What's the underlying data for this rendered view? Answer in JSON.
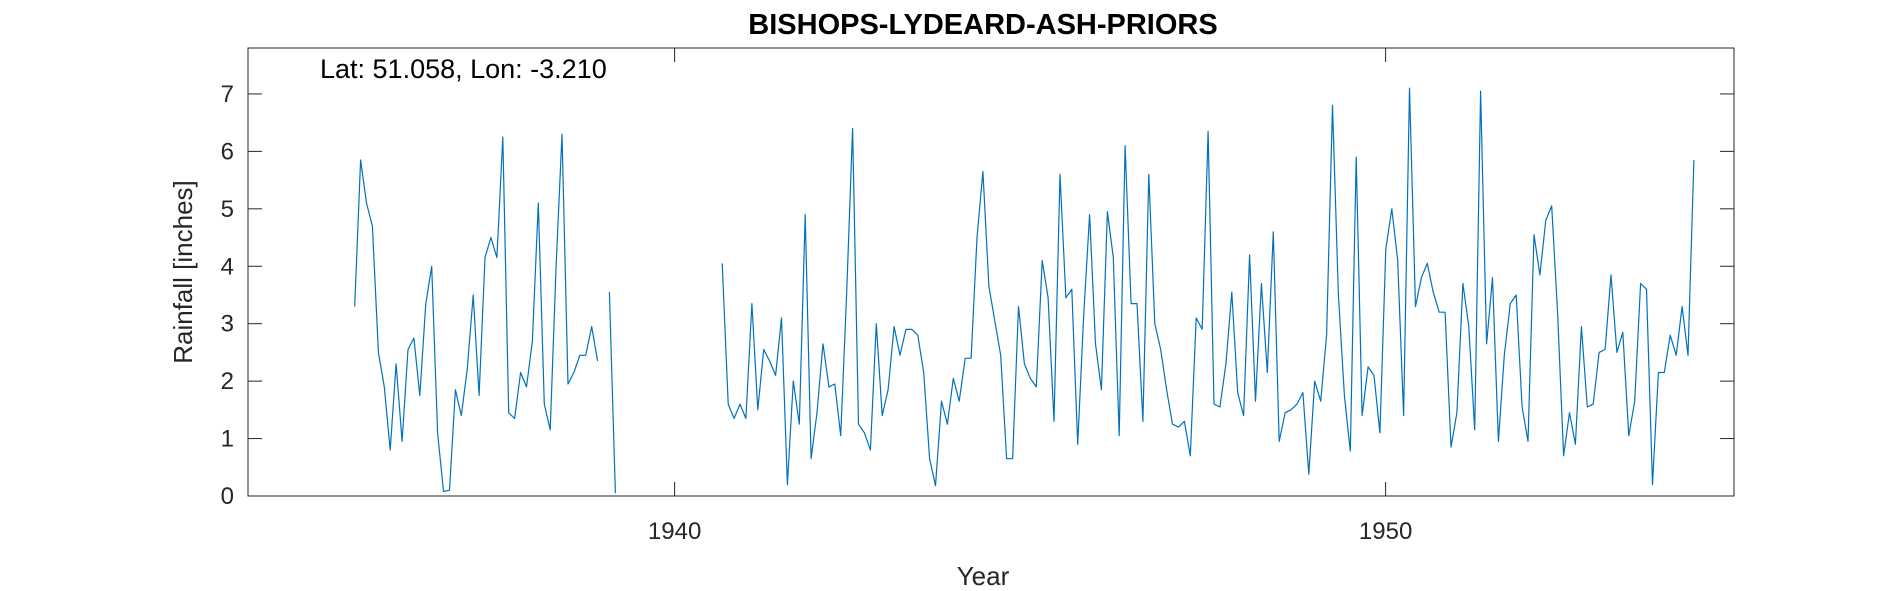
{
  "chart_data": {
    "type": "line",
    "title": "BISHOPS-LYDEARD-ASH-PRIORS",
    "xlabel": "Year",
    "ylabel": "Rainfall [inches]",
    "annotation": "Lat: 51.058, Lon: -3.210",
    "xlim": [
      1934.0,
      1954.9
    ],
    "ylim": [
      0,
      7.8
    ],
    "xticks": [
      1940,
      1950
    ],
    "xtick_labels": [
      "1940",
      "1950"
    ],
    "yticks": [
      0,
      1,
      2,
      3,
      4,
      5,
      6,
      7
    ],
    "ytick_labels": [
      "0",
      "1",
      "2",
      "3",
      "4",
      "5",
      "6",
      "7"
    ],
    "grid": false,
    "line_color": "#0072BD",
    "series": [
      {
        "start_year": 1935.5,
        "step_months": 1,
        "segments": [
          {
            "start_year": 1935.5,
            "values": [
              3.3,
              5.85,
              5.1,
              4.7,
              2.5,
              1.9,
              0.8,
              2.3,
              0.95,
              2.55,
              2.75,
              1.75,
              3.35,
              4.0,
              1.1,
              0.08,
              0.1,
              1.85,
              1.4,
              2.2,
              3.5,
              1.75,
              4.15,
              4.5,
              4.15,
              6.25,
              1.45,
              1.35,
              2.15,
              1.9,
              2.7,
              5.1,
              1.6,
              1.15,
              4.0,
              6.3,
              1.95,
              2.15,
              2.45,
              2.45,
              2.95,
              2.35,
              "gap",
              3.55,
              0.05
            ]
          },
          {
            "start_year": 1940.67,
            "values": [
              4.05,
              1.6,
              1.35,
              1.6,
              1.35,
              3.35,
              1.5,
              2.55,
              2.35,
              2.1,
              3.1,
              0.2,
              2.0,
              1.25,
              4.9,
              0.65,
              1.45,
              2.65,
              1.9,
              1.95,
              1.05,
              3.55,
              6.4,
              1.25,
              1.1,
              0.8,
              3.0,
              1.4,
              1.85,
              2.95,
              2.45,
              2.9,
              2.9,
              2.8,
              2.15,
              0.65,
              0.18,
              1.65,
              1.25,
              2.05,
              1.65,
              2.4,
              2.4,
              4.5,
              5.65,
              3.65,
              3.05,
              2.45,
              0.65,
              0.65,
              3.3,
              2.3,
              2.05,
              1.9,
              4.1,
              3.45,
              1.3,
              5.6,
              3.45,
              3.6,
              0.9,
              3.15,
              4.9,
              2.65,
              1.85,
              4.95,
              4.15,
              1.05,
              6.1,
              3.35,
              3.35,
              1.3,
              5.6,
              3.0,
              2.55,
              1.85,
              1.25,
              1.2,
              1.3,
              0.7,
              3.1,
              2.9,
              6.35,
              1.6,
              1.55,
              2.3,
              3.55,
              1.8,
              1.4,
              4.2,
              1.65,
              3.7,
              2.15,
              4.6,
              0.95,
              1.45,
              1.5,
              1.6,
              1.8,
              0.38,
              2.0,
              1.65,
              2.8,
              6.8,
              3.5,
              1.75,
              0.78,
              5.9,
              1.4,
              2.25,
              2.1,
              1.1,
              4.3,
              5.0,
              4.1,
              1.4,
              7.1,
              3.3,
              3.8,
              4.05,
              3.55,
              3.2,
              3.2,
              0.85,
              1.45,
              3.7,
              2.95,
              1.15,
              7.05,
              2.65,
              3.8,
              0.95,
              2.45,
              3.35,
              3.5,
              1.55,
              0.95,
              4.55,
              3.85,
              4.8,
              5.05,
              3.15,
              0.7,
              1.45,
              0.9,
              2.95,
              1.55,
              1.6,
              2.5,
              2.55,
              3.85,
              2.5,
              2.85,
              1.05,
              1.65,
              3.7,
              3.6,
              0.2,
              2.15,
              2.15,
              2.8,
              2.45,
              3.3,
              2.45,
              5.85
            ]
          }
        ]
      }
    ]
  }
}
